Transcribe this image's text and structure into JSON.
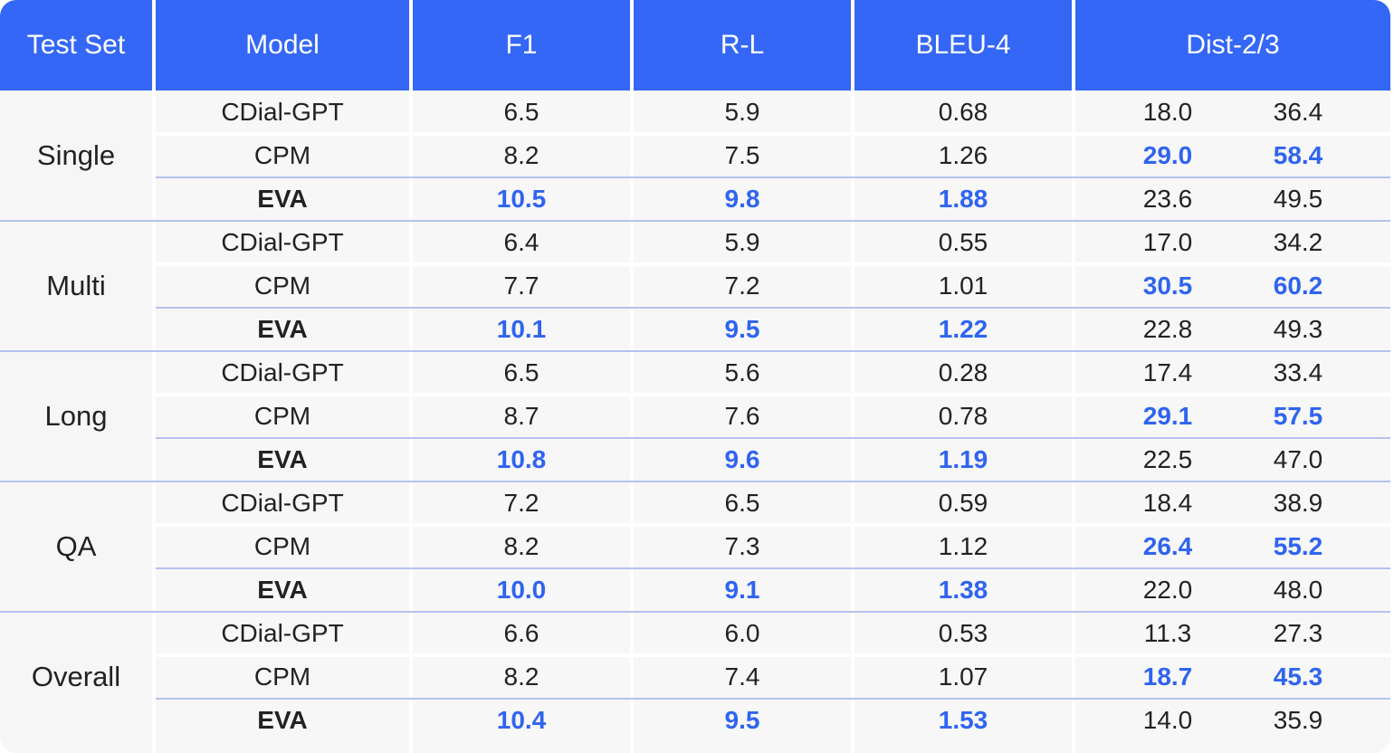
{
  "headers": [
    "Test Set",
    "Model",
    "F1",
    "R-L",
    "BLEU-4",
    "Dist-2/3"
  ],
  "groups": [
    {
      "name": "Single",
      "rows": [
        {
          "model": "CDial-GPT",
          "f1": "6.5",
          "rl": "5.9",
          "bleu4": "0.68",
          "dist2": "18.0",
          "dist3": "36.4"
        },
        {
          "model": "CPM",
          "f1": "8.2",
          "rl": "7.5",
          "bleu4": "1.26",
          "dist2": "29.0",
          "dist3": "58.4"
        },
        {
          "model": "EVA",
          "f1": "10.5",
          "rl": "9.8",
          "bleu4": "1.88",
          "dist2": "23.6",
          "dist3": "49.5"
        }
      ]
    },
    {
      "name": "Multi",
      "rows": [
        {
          "model": "CDial-GPT",
          "f1": "6.4",
          "rl": "5.9",
          "bleu4": "0.55",
          "dist2": "17.0",
          "dist3": "34.2"
        },
        {
          "model": "CPM",
          "f1": "7.7",
          "rl": "7.2",
          "bleu4": "1.01",
          "dist2": "30.5",
          "dist3": "60.2"
        },
        {
          "model": "EVA",
          "f1": "10.1",
          "rl": "9.5",
          "bleu4": "1.22",
          "dist2": "22.8",
          "dist3": "49.3"
        }
      ]
    },
    {
      "name": "Long",
      "rows": [
        {
          "model": "CDial-GPT",
          "f1": "6.5",
          "rl": "5.6",
          "bleu4": "0.28",
          "dist2": "17.4",
          "dist3": "33.4"
        },
        {
          "model": "CPM",
          "f1": "8.7",
          "rl": "7.6",
          "bleu4": "0.78",
          "dist2": "29.1",
          "dist3": "57.5"
        },
        {
          "model": "EVA",
          "f1": "10.8",
          "rl": "9.6",
          "bleu4": "1.19",
          "dist2": "22.5",
          "dist3": "47.0"
        }
      ]
    },
    {
      "name": "QA",
      "rows": [
        {
          "model": "CDial-GPT",
          "f1": "7.2",
          "rl": "6.5",
          "bleu4": "0.59",
          "dist2": "18.4",
          "dist3": "38.9"
        },
        {
          "model": "CPM",
          "f1": "8.2",
          "rl": "7.3",
          "bleu4": "1.12",
          "dist2": "26.4",
          "dist3": "55.2"
        },
        {
          "model": "EVA",
          "f1": "10.0",
          "rl": "9.1",
          "bleu4": "1.38",
          "dist2": "22.0",
          "dist3": "48.0"
        }
      ]
    },
    {
      "name": "Overall",
      "rows": [
        {
          "model": "CDial-GPT",
          "f1": "6.6",
          "rl": "6.0",
          "bleu4": "0.53",
          "dist2": "11.3",
          "dist3": "27.3"
        },
        {
          "model": "CPM",
          "f1": "8.2",
          "rl": "7.4",
          "bleu4": "1.07",
          "dist2": "18.7",
          "dist3": "45.3"
        },
        {
          "model": "EVA",
          "f1": "10.4",
          "rl": "9.5",
          "bleu4": "1.53",
          "dist2": "14.0",
          "dist3": "35.9"
        }
      ]
    }
  ],
  "colors": {
    "header_bg": "#3467f6",
    "best_text": "#2f64f0",
    "body_bg": "#f7f7f7"
  }
}
